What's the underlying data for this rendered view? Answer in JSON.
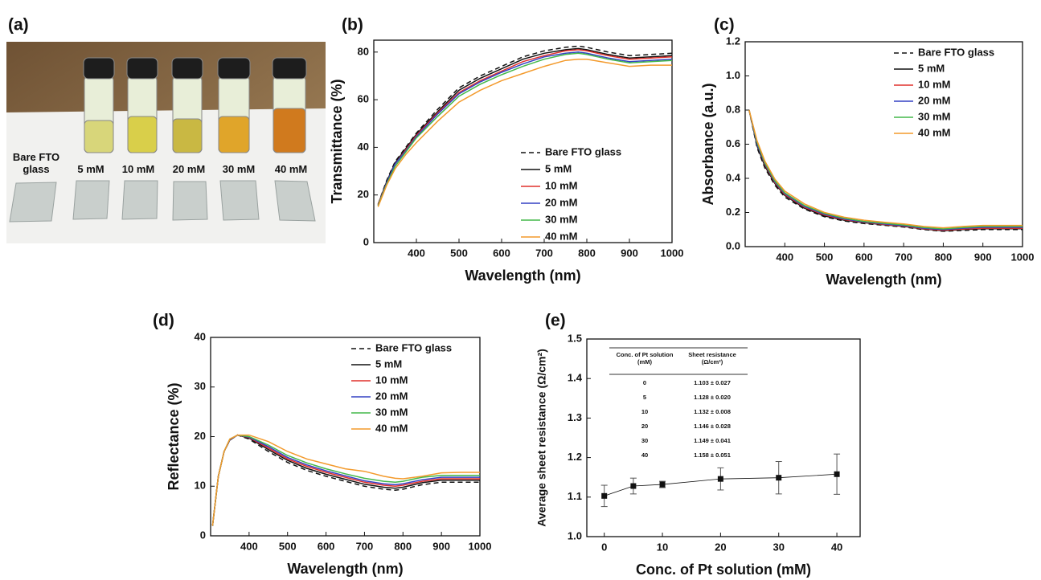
{
  "photo": {
    "panel": "(a)",
    "labels": [
      "Bare FTO glass",
      "5 mM",
      "10 mM",
      "20 mM",
      "30 mM",
      "40 mM"
    ]
  },
  "chart_data": [
    {
      "panel": "(b)",
      "type": "line",
      "xlabel": "Wavelength (nm)",
      "ylabel": "Transmittance (%)",
      "xlim": [
        300,
        1000
      ],
      "xticks": [
        400,
        500,
        600,
        700,
        800,
        900,
        1000
      ],
      "ylim": [
        0,
        85
      ],
      "yticks": [
        0,
        20,
        40,
        60,
        80
      ],
      "legend": "lower right",
      "x": [
        310,
        330,
        350,
        375,
        400,
        450,
        500,
        550,
        600,
        650,
        700,
        750,
        780,
        800,
        850,
        900,
        950,
        1000
      ],
      "series": [
        {
          "name": "Bare FTO glass",
          "color": "#111111",
          "style": "dashed",
          "values": [
            16,
            26,
            34,
            40,
            46,
            56,
            65,
            70,
            74,
            78,
            80.5,
            82,
            82.5,
            82,
            80,
            78.5,
            79,
            79.5
          ]
        },
        {
          "name": "5 mM",
          "color": "#111111",
          "style": "solid",
          "values": [
            16,
            25.5,
            33.5,
            39.5,
            45.5,
            55,
            64,
            69,
            73,
            77,
            79.5,
            81,
            81.5,
            81,
            79,
            77.5,
            78,
            78.5
          ]
        },
        {
          "name": "10 mM",
          "color": "#e0302c",
          "style": "solid",
          "values": [
            16,
            25,
            33,
            39,
            45,
            54.5,
            63,
            68,
            72,
            76,
            78.5,
            80.5,
            81,
            80.5,
            78.5,
            77,
            77.5,
            78
          ]
        },
        {
          "name": "20 mM",
          "color": "#3340c4",
          "style": "solid",
          "values": [
            15.5,
            25,
            33,
            38.5,
            44.5,
            54,
            62.5,
            67.5,
            71.5,
            75,
            78,
            79.5,
            80,
            79.5,
            77.5,
            76,
            76.5,
            77
          ]
        },
        {
          "name": "30 mM",
          "color": "#44b84a",
          "style": "solid",
          "values": [
            15.5,
            24.5,
            32,
            38,
            44,
            53,
            61.5,
            66.5,
            70.5,
            74,
            77,
            79,
            79.5,
            79,
            77,
            75.5,
            76,
            76.5
          ]
        },
        {
          "name": "40 mM",
          "color": "#f39a2c",
          "style": "solid",
          "values": [
            15,
            24,
            31,
            37,
            42,
            51,
            59,
            64,
            68,
            71,
            74,
            76.5,
            77,
            77,
            75.5,
            74,
            74.5,
            74.5
          ]
        }
      ]
    },
    {
      "panel": "(c)",
      "type": "line",
      "xlabel": "Wavelength (nm)",
      "ylabel": "Absorbance (a.u.)",
      "xlim": [
        300,
        1000
      ],
      "xticks": [
        400,
        500,
        600,
        700,
        800,
        900,
        1000
      ],
      "ylim": [
        0,
        1.2
      ],
      "yticks": [
        {
          "value": 0,
          "label": "0.0"
        },
        0.2,
        0.4,
        0.6,
        0.8,
        {
          "value": 1,
          "label": "1.0"
        },
        1.2
      ],
      "legend": "upper right",
      "x": [
        310,
        330,
        350,
        375,
        400,
        450,
        500,
        550,
        600,
        650,
        700,
        750,
        800,
        850,
        900,
        950,
        1000
      ],
      "series": [
        {
          "name": "Bare FTO glass",
          "color": "#111111",
          "style": "dashed",
          "values": [
            0.8,
            0.58,
            0.46,
            0.36,
            0.29,
            0.22,
            0.175,
            0.15,
            0.135,
            0.125,
            0.115,
            0.1,
            0.09,
            0.095,
            0.1,
            0.1,
            0.1
          ]
        },
        {
          "name": "5 mM",
          "color": "#111111",
          "style": "solid",
          "values": [
            0.8,
            0.59,
            0.47,
            0.37,
            0.3,
            0.225,
            0.18,
            0.155,
            0.14,
            0.128,
            0.118,
            0.103,
            0.093,
            0.1,
            0.105,
            0.105,
            0.105
          ]
        },
        {
          "name": "10 mM",
          "color": "#e0302c",
          "style": "solid",
          "values": [
            0.8,
            0.6,
            0.48,
            0.375,
            0.305,
            0.23,
            0.185,
            0.158,
            0.142,
            0.13,
            0.12,
            0.105,
            0.096,
            0.103,
            0.108,
            0.108,
            0.108
          ]
        },
        {
          "name": "20 mM",
          "color": "#3340c4",
          "style": "solid",
          "values": [
            0.8,
            0.6,
            0.485,
            0.38,
            0.31,
            0.235,
            0.19,
            0.162,
            0.145,
            0.133,
            0.123,
            0.108,
            0.1,
            0.108,
            0.113,
            0.113,
            0.113
          ]
        },
        {
          "name": "30 mM",
          "color": "#44b84a",
          "style": "solid",
          "values": [
            0.8,
            0.61,
            0.49,
            0.385,
            0.315,
            0.24,
            0.195,
            0.166,
            0.148,
            0.137,
            0.127,
            0.112,
            0.104,
            0.112,
            0.118,
            0.118,
            0.118
          ]
        },
        {
          "name": "40 mM",
          "color": "#f39a2c",
          "style": "solid",
          "values": [
            0.8,
            0.62,
            0.5,
            0.395,
            0.325,
            0.25,
            0.2,
            0.172,
            0.155,
            0.143,
            0.133,
            0.118,
            0.11,
            0.118,
            0.124,
            0.124,
            0.124
          ]
        }
      ]
    },
    {
      "panel": "(d)",
      "type": "line",
      "xlabel": "Wavelength (nm)",
      "ylabel": "Reflectance (%)",
      "xlim": [
        300,
        1000
      ],
      "xticks": [
        400,
        500,
        600,
        700,
        800,
        900,
        1000
      ],
      "ylim": [
        0,
        40
      ],
      "yticks": [
        0,
        10,
        20,
        30,
        40
      ],
      "legend": "upper right",
      "x": [
        305,
        320,
        335,
        350,
        370,
        400,
        450,
        500,
        550,
        600,
        650,
        700,
        750,
        780,
        800,
        850,
        900,
        950,
        1000
      ],
      "series": [
        {
          "name": "Bare FTO glass",
          "color": "#111111",
          "style": "dashed",
          "values": [
            2,
            12,
            17,
            19.3,
            20.3,
            19.5,
            17,
            14.8,
            13.2,
            12,
            11,
            10,
            9.4,
            9.2,
            9.4,
            10.3,
            10.8,
            10.8,
            10.8
          ]
        },
        {
          "name": "5 mM",
          "color": "#111111",
          "style": "solid",
          "values": [
            2,
            12,
            17,
            19.3,
            20.3,
            19.7,
            17.4,
            15.2,
            13.6,
            12.4,
            11.4,
            10.4,
            9.8,
            9.6,
            9.8,
            10.7,
            11.2,
            11.2,
            11.2
          ]
        },
        {
          "name": "10 mM",
          "color": "#e0302c",
          "style": "solid",
          "values": [
            2,
            12,
            17,
            19.4,
            20.3,
            19.8,
            17.7,
            15.5,
            14,
            12.8,
            11.8,
            10.8,
            10.2,
            10,
            10.2,
            11,
            11.5,
            11.5,
            11.5
          ]
        },
        {
          "name": "20 mM",
          "color": "#3340c4",
          "style": "solid",
          "values": [
            2,
            12,
            17,
            19.4,
            20.3,
            19.9,
            18,
            15.8,
            14.3,
            13.1,
            12.1,
            11.1,
            10.5,
            10.3,
            10.5,
            11.3,
            11.8,
            11.8,
            11.8
          ]
        },
        {
          "name": "30 mM",
          "color": "#44b84a",
          "style": "solid",
          "values": [
            2,
            12,
            17,
            19.5,
            20.3,
            20,
            18.3,
            16.2,
            14.7,
            13.5,
            12.5,
            11.6,
            11,
            10.8,
            11,
            11.8,
            12.2,
            12.2,
            12.2
          ]
        },
        {
          "name": "40 mM",
          "color": "#f39a2c",
          "style": "solid",
          "values": [
            2,
            12,
            17,
            19.5,
            20.3,
            20.3,
            19,
            17,
            15.5,
            14.5,
            13.5,
            13,
            12,
            11.6,
            11.5,
            12,
            12.7,
            12.8,
            12.8
          ]
        }
      ]
    },
    {
      "panel": "(e)",
      "type": "errorbar",
      "xlabel": "Conc. of Pt solution (mM)",
      "ylabel": "Average sheet resistance (Ω/cm²)",
      "xlim": [
        -3,
        44
      ],
      "xticks": [
        0,
        10,
        20,
        30,
        40
      ],
      "ylim": [
        1,
        1.5
      ],
      "yticks": [
        {
          "value": 1,
          "label": "1.0"
        },
        1.1,
        1.2,
        1.3,
        1.4,
        1.5
      ],
      "x": [
        0,
        5,
        10,
        20,
        30,
        40
      ],
      "values": [
        1.103,
        1.128,
        1.132,
        1.146,
        1.149,
        1.158
      ],
      "errors": [
        0.027,
        0.02,
        0.008,
        0.028,
        0.041,
        0.051
      ],
      "color": "#111111",
      "table": {
        "header": [
          "Conc. of Pt solution (mM)",
          "Sheet resistance (Ω/cm²)"
        ],
        "rows": [
          [
            "0",
            "1.103 ± 0.027"
          ],
          [
            "5",
            "1.128 ± 0.020"
          ],
          [
            "10",
            "1.132 ± 0.008"
          ],
          [
            "20",
            "1.146 ± 0.028"
          ],
          [
            "30",
            "1.149 ± 0.041"
          ],
          [
            "40",
            "1.158 ± 0.051"
          ]
        ]
      }
    }
  ]
}
